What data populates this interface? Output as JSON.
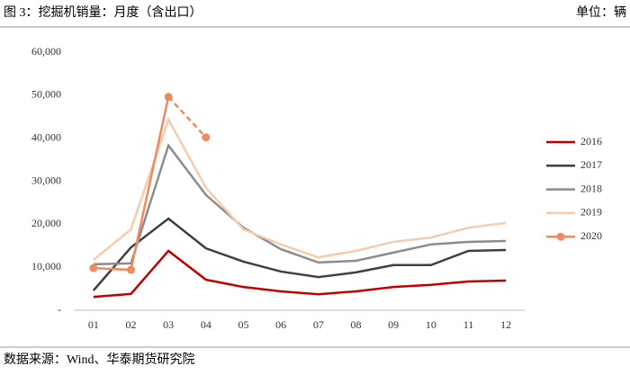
{
  "chart_data": {
    "type": "line",
    "title": "图 3：挖掘机销量：月度（含出口）",
    "unit": "单位：辆",
    "source": "数据来源：Wind、华泰期货研究院",
    "categories": [
      "01",
      "02",
      "03",
      "04",
      "05",
      "06",
      "07",
      "08",
      "09",
      "10",
      "11",
      "12"
    ],
    "series": [
      {
        "name": "2016",
        "color": "#c00000",
        "values": [
          3100,
          3800,
          13800,
          7100,
          5400,
          4400,
          3700,
          4400,
          5400,
          5900,
          6700,
          6900
        ]
      },
      {
        "name": "2017",
        "color": "#404040",
        "values": [
          4600,
          14600,
          21300,
          14400,
          11300,
          9000,
          7700,
          8800,
          10500,
          10500,
          13800,
          14000
        ]
      },
      {
        "name": "2018",
        "color": "#8c8c8c",
        "values": [
          10700,
          10900,
          38300,
          26800,
          19200,
          14200,
          11100,
          11500,
          13400,
          15300,
          15900,
          16100
        ]
      },
      {
        "name": "2019",
        "color": "#f8cbad",
        "values": [
          11700,
          18800,
          44300,
          28500,
          18800,
          15300,
          12300,
          13800,
          15900,
          16900,
          19200,
          20300
        ]
      },
      {
        "name": "2020",
        "color": "#ee8a60",
        "markers": true,
        "dashed_last_segment": true,
        "values": [
          9800,
          9400,
          49600,
          40200,
          null,
          null,
          null,
          null,
          null,
          null,
          null,
          null
        ]
      }
    ],
    "ylim": [
      0,
      60000
    ],
    "yticks": [
      {
        "value": 0,
        "label": "-"
      },
      {
        "value": 10000,
        "label": "10,000"
      },
      {
        "value": 20000,
        "label": "20,000"
      },
      {
        "value": 30000,
        "label": "30,000"
      },
      {
        "value": 40000,
        "label": "40,000"
      },
      {
        "value": 50000,
        "label": "50,000"
      },
      {
        "value": 60000,
        "label": "60,000"
      }
    ],
    "grid": false,
    "legend": "right"
  }
}
